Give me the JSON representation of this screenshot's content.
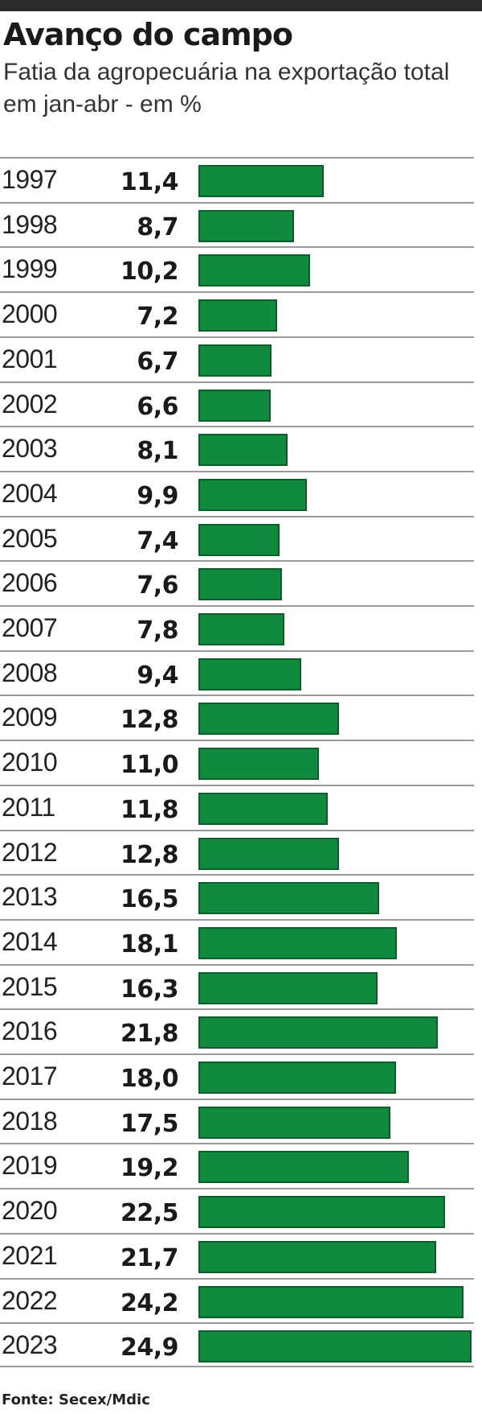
{
  "header": {
    "title": "Avanço do campo",
    "subtitle": "Fatia da agropecuária na exportação total em jan-abr - em %"
  },
  "chart_data": {
    "type": "bar",
    "orientation": "horizontal",
    "title": "Avanço do campo",
    "subtitle": "Fatia da agropecuária na exportação total em jan-abr - em %",
    "xlabel": "",
    "ylabel": "",
    "unit": "%",
    "grid": false,
    "legend": "none",
    "bar_color": "#0f8a3e",
    "xlim": [
      0,
      24.9
    ],
    "rows": [
      {
        "year": "1997",
        "value": 11.4,
        "label": "11,4"
      },
      {
        "year": "1998",
        "value": 8.7,
        "label": "8,7"
      },
      {
        "year": "1999",
        "value": 10.2,
        "label": "10,2"
      },
      {
        "year": "2000",
        "value": 7.2,
        "label": "7,2"
      },
      {
        "year": "2001",
        "value": 6.7,
        "label": "6,7"
      },
      {
        "year": "2002",
        "value": 6.6,
        "label": "6,6"
      },
      {
        "year": "2003",
        "value": 8.1,
        "label": "8,1"
      },
      {
        "year": "2004",
        "value": 9.9,
        "label": "9,9"
      },
      {
        "year": "2005",
        "value": 7.4,
        "label": "7,4"
      },
      {
        "year": "2006",
        "value": 7.6,
        "label": "7,6"
      },
      {
        "year": "2007",
        "value": 7.8,
        "label": "7,8"
      },
      {
        "year": "2008",
        "value": 9.4,
        "label": "9,4"
      },
      {
        "year": "2009",
        "value": 12.8,
        "label": "12,8"
      },
      {
        "year": "2010",
        "value": 11.0,
        "label": "11,0"
      },
      {
        "year": "2011",
        "value": 11.8,
        "label": "11,8"
      },
      {
        "year": "2012",
        "value": 12.8,
        "label": "12,8"
      },
      {
        "year": "2013",
        "value": 16.5,
        "label": "16,5"
      },
      {
        "year": "2014",
        "value": 18.1,
        "label": "18,1"
      },
      {
        "year": "2015",
        "value": 16.3,
        "label": "16,3"
      },
      {
        "year": "2016",
        "value": 21.8,
        "label": "21,8"
      },
      {
        "year": "2017",
        "value": 18.0,
        "label": "18,0"
      },
      {
        "year": "2018",
        "value": 17.5,
        "label": "17,5"
      },
      {
        "year": "2019",
        "value": 19.2,
        "label": "19,2"
      },
      {
        "year": "2020",
        "value": 22.5,
        "label": "22,5"
      },
      {
        "year": "2021",
        "value": 21.7,
        "label": "21,7"
      },
      {
        "year": "2022",
        "value": 24.2,
        "label": "24,2"
      },
      {
        "year": "2023",
        "value": 24.9,
        "label": "24,9"
      }
    ]
  },
  "footer": {
    "source": "Fonte: Secex/Mdic"
  }
}
